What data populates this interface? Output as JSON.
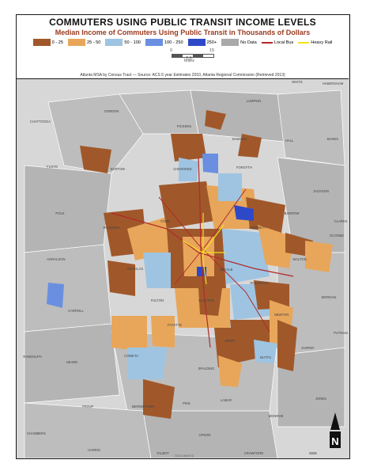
{
  "map": {
    "title": "COMMUTERS USING PUBLIC TRANSIT INCOME LEVELS",
    "subtitle": "Median Income of Commuters Using Public Transit in Thousands of Dollars",
    "source": "Atlanta MSA by Census Tract — Source: ACS 5 year Estimates 2010, Atlanta Regional Commission (Retrieved 2013)",
    "credit": "©2013 WMTED",
    "north": "N",
    "scale": {
      "zero": "0",
      "mid": "7.5",
      "max": "15",
      "unit": "Miles"
    }
  },
  "legend": {
    "bins": [
      {
        "label": "0 - 25",
        "color": "#a0582a"
      },
      {
        "label": "25 - 50",
        "color": "#e8a65a"
      },
      {
        "label": "50 - 100",
        "color": "#9ec4e2"
      },
      {
        "label": "100 - 250",
        "color": "#6a8fe0"
      },
      {
        "label": "250+",
        "color": "#2e49c8"
      },
      {
        "label": "No Data",
        "color": "#a9a9a9"
      }
    ],
    "lines": [
      {
        "label": "Local Bus",
        "color": "#b02a2a"
      },
      {
        "label": "Heavy Rail",
        "color": "#f0e020"
      }
    ]
  },
  "places": {
    "counties": [
      "GORDON",
      "PICKENS",
      "DAWSON",
      "LUMPKIN",
      "WHITE",
      "HABERSHAM",
      "HALL",
      "BANKS",
      "CHATTOOGA",
      "FLOYD",
      "BARTOW",
      "CHEROKEE",
      "FORSYTH",
      "JACKSON",
      "POLK",
      "PAULDING",
      "COBB",
      "GWINNETT",
      "BARROW",
      "CLARKE",
      "OCONEE",
      "HARALSON",
      "DOUGLAS",
      "DEKALB",
      "WALTON",
      "FULTON",
      "CLAYTON",
      "ROCKDALE",
      "MORGAN",
      "CARROLL",
      "FAYETTE",
      "HENRY",
      "NEWTON",
      "HEARD",
      "COWETA",
      "SPALDING",
      "BUTTS",
      "JASPER",
      "PUTNAM",
      "RANDOLPH",
      "TROUP",
      "MERIWETHER",
      "PIKE",
      "LAMAR",
      "MONROE",
      "JONES",
      "CHAMBERS",
      "UPSON",
      "HARRIS",
      "TALBOT",
      "CRAWFORD",
      "BIBB"
    ],
    "corner": "DADE",
    "ne_corner": "RABUN"
  }
}
